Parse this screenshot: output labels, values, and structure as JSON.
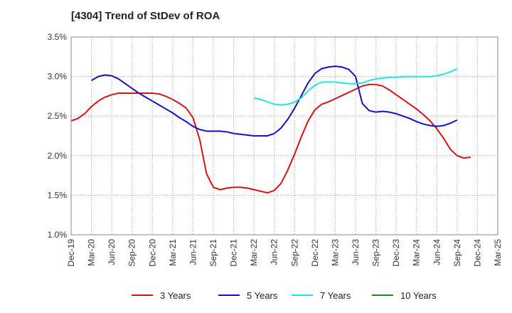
{
  "chart_data": {
    "type": "line",
    "title": "[4304]  Trend of StDev of ROA",
    "xlabel": "",
    "ylabel": "",
    "ylim": [
      1.0,
      3.5
    ],
    "yticks": [
      "1.0%",
      "1.5%",
      "2.0%",
      "2.5%",
      "3.0%",
      "3.5%"
    ],
    "ytick_values": [
      1.0,
      1.5,
      2.0,
      2.5,
      3.0,
      3.5
    ],
    "xticks": [
      "Dec-19",
      "Mar-20",
      "Jun-20",
      "Sep-20",
      "Dec-20",
      "Mar-21",
      "Jun-21",
      "Sep-21",
      "Dec-21",
      "Mar-22",
      "Jun-22",
      "Sep-22",
      "Dec-22",
      "Mar-23",
      "Jun-23",
      "Sep-23",
      "Dec-23",
      "Mar-24",
      "Jun-24",
      "Sep-24",
      "Dec-24",
      "Mar-25"
    ],
    "grid": "vertical and horizontal dotted",
    "legend_position": "bottom",
    "series": [
      {
        "name": "3 Years",
        "color": "#dd1111",
        "start_index": 0,
        "values": [
          2.44,
          2.47,
          2.53,
          2.62,
          2.69,
          2.74,
          2.77,
          2.79,
          2.79,
          2.79,
          2.79,
          2.79,
          2.79,
          2.78,
          2.75,
          2.71,
          2.66,
          2.6,
          2.48,
          2.2,
          1.77,
          1.6,
          1.57,
          1.59,
          1.6,
          1.6,
          1.59,
          1.57,
          1.55,
          1.53,
          1.56,
          1.65,
          1.82,
          2.02,
          2.24,
          2.44,
          2.58,
          2.65,
          2.68,
          2.72,
          2.76,
          2.8,
          2.84,
          2.88,
          2.9,
          2.9,
          2.88,
          2.83,
          2.77,
          2.71,
          2.65,
          2.59,
          2.52,
          2.44,
          2.34,
          2.22,
          2.08,
          2.0,
          1.97,
          1.98
        ]
      },
      {
        "name": "5 Years",
        "color": "#1111cc",
        "start_index": 3,
        "values": [
          2.95,
          3.0,
          3.02,
          3.01,
          2.97,
          2.91,
          2.85,
          2.79,
          2.74,
          2.69,
          2.64,
          2.59,
          2.54,
          2.48,
          2.43,
          2.37,
          2.33,
          2.31,
          2.31,
          2.31,
          2.3,
          2.28,
          2.27,
          2.26,
          2.25,
          2.25,
          2.25,
          2.28,
          2.35,
          2.46,
          2.6,
          2.76,
          2.92,
          3.04,
          3.1,
          3.12,
          3.13,
          3.12,
          3.09,
          3.0,
          2.66,
          2.57,
          2.55,
          2.56,
          2.55,
          2.53,
          2.5,
          2.47,
          2.43,
          2.4,
          2.38,
          2.37,
          2.38,
          2.41,
          2.45
        ]
      },
      {
        "name": "7 Years",
        "color": "#22e6e6",
        "start_index": 27,
        "values": [
          2.73,
          2.71,
          2.68,
          2.65,
          2.64,
          2.65,
          2.68,
          2.73,
          2.82,
          2.89,
          2.93,
          2.93,
          2.93,
          2.92,
          2.91,
          2.91,
          2.92,
          2.95,
          2.97,
          2.98,
          2.99,
          2.99,
          3.0,
          3.0,
          3.0,
          3.0,
          3.0,
          3.01,
          3.03,
          3.06,
          3.1
        ]
      },
      {
        "name": "10 Years",
        "color": "#228b22",
        "start_index": 0,
        "values": []
      }
    ]
  }
}
